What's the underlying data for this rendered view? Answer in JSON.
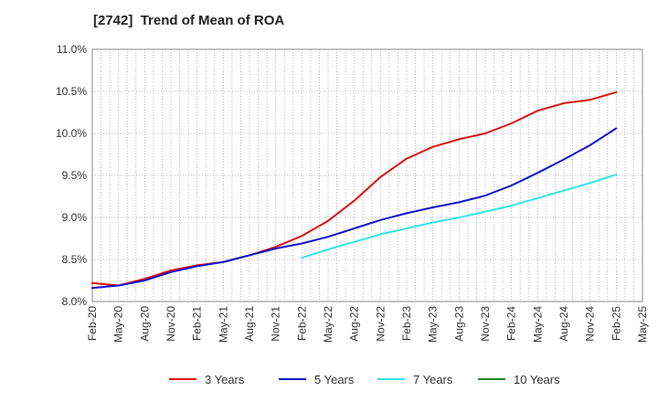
{
  "chart_data": {
    "type": "line",
    "title": "[2742]  Trend of Mean of ROA",
    "xlabel": "",
    "ylabel": "",
    "ylim": [
      8.0,
      11.0
    ],
    "yticks": [
      "8.0%",
      "8.5%",
      "9.0%",
      "9.5%",
      "10.0%",
      "10.5%",
      "11.0%"
    ],
    "ytick_values": [
      8.0,
      8.5,
      9.0,
      9.5,
      10.0,
      10.5,
      11.0
    ],
    "categories": [
      "Feb-20",
      "May-20",
      "Aug-20",
      "Nov-20",
      "Feb-21",
      "May-21",
      "Aug-21",
      "Nov-21",
      "Feb-22",
      "May-22",
      "Aug-22",
      "Nov-22",
      "Feb-23",
      "May-23",
      "Aug-23",
      "Nov-23",
      "Feb-24",
      "May-24",
      "Aug-24",
      "Nov-24",
      "Feb-25",
      "May-25"
    ],
    "grid": true,
    "legend_position": "bottom",
    "series": [
      {
        "name": "3 Years",
        "color": "#dd1111",
        "values": [
          8.22,
          8.19,
          8.27,
          8.37,
          8.43,
          8.47,
          8.55,
          8.65,
          8.78,
          8.96,
          9.2,
          9.48,
          9.7,
          9.84,
          9.93,
          10.0,
          10.12,
          10.27,
          10.36,
          10.4,
          10.49,
          null
        ]
      },
      {
        "name": "5 Years",
        "color": "#1111cc",
        "values": [
          8.16,
          8.19,
          8.25,
          8.35,
          8.42,
          8.47,
          8.55,
          8.63,
          8.69,
          8.77,
          8.87,
          8.97,
          9.05,
          9.12,
          9.18,
          9.26,
          9.38,
          9.53,
          9.69,
          9.86,
          10.06,
          null
        ]
      },
      {
        "name": "7 Years",
        "color": "#33e5e5",
        "values": [
          null,
          null,
          null,
          null,
          null,
          null,
          null,
          null,
          8.52,
          8.62,
          8.71,
          8.8,
          8.87,
          8.94,
          9.0,
          9.07,
          9.14,
          9.23,
          9.32,
          9.41,
          9.51,
          null
        ]
      },
      {
        "name": "10 Years",
        "color": "#228822",
        "values": [
          null,
          null,
          null,
          null,
          null,
          null,
          null,
          null,
          null,
          null,
          null,
          null,
          null,
          null,
          null,
          null,
          null,
          null,
          null,
          null,
          null,
          null
        ]
      }
    ]
  }
}
